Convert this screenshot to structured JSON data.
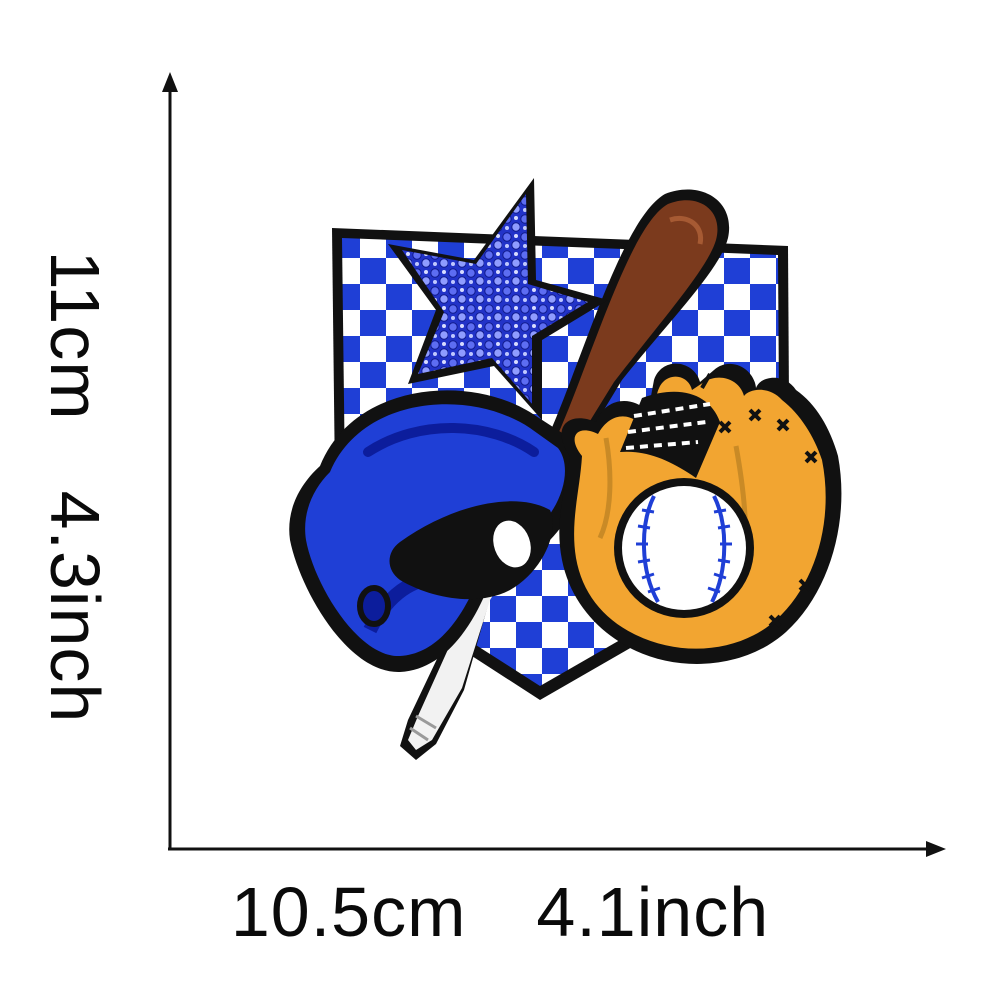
{
  "height_label": {
    "metric": "11cm",
    "imperial": "4.3inch"
  },
  "width_label": {
    "metric": "10.5cm",
    "imperial": "4.1inch"
  },
  "colors": {
    "royal_blue": "#1f3fd6",
    "dark_blue": "#0c1d9c",
    "gold": "#f2a531",
    "bat_brown": "#7b3a1d",
    "outline": "#111111",
    "white": "#ffffff"
  },
  "icons": {
    "patch": "baseball-embroidered-patch",
    "star": "sequin-star-icon",
    "helmet": "batting-helmet-icon",
    "bat": "baseball-bat-icon",
    "glove": "baseball-glove-icon",
    "ball": "baseball-icon"
  }
}
